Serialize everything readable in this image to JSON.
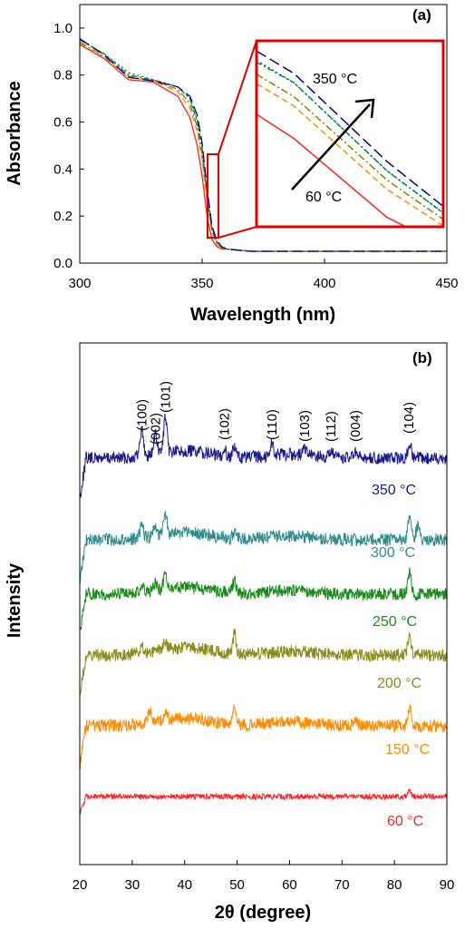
{
  "chart_data": [
    {
      "type": "line",
      "panel_label": "(a)",
      "xlabel": "Wavelength (nm)",
      "ylabel": "Absorbance",
      "xlim": [
        300,
        450
      ],
      "ylim": [
        0,
        1.1
      ],
      "xticks": [
        300,
        350,
        400,
        450
      ],
      "yticks": [
        0.0,
        0.2,
        0.4,
        0.6,
        0.8,
        1.0
      ],
      "grid": false,
      "annotations": {
        "high": "350 °C",
        "low": "60 °C"
      },
      "series": [
        {
          "color": "#ff2020",
          "dash": "solid",
          "x": [
            300,
            310,
            320,
            330,
            340,
            345,
            348,
            350,
            352,
            354,
            356,
            358,
            360,
            365,
            370,
            380,
            400,
            450
          ],
          "y": [
            0.93,
            0.87,
            0.78,
            0.77,
            0.71,
            0.62,
            0.5,
            0.37,
            0.2,
            0.1,
            0.07,
            0.06,
            0.06,
            0.055,
            0.05,
            0.05,
            0.05,
            0.05
          ]
        },
        {
          "color": "#ff8c00",
          "dash": "dash",
          "x": [
            300,
            310,
            320,
            330,
            340,
            345,
            348,
            350,
            352,
            354,
            356,
            358,
            360,
            365,
            370,
            380,
            400,
            450
          ],
          "y": [
            0.935,
            0.875,
            0.79,
            0.775,
            0.73,
            0.66,
            0.56,
            0.44,
            0.26,
            0.13,
            0.08,
            0.065,
            0.06,
            0.055,
            0.05,
            0.05,
            0.05,
            0.05
          ]
        },
        {
          "color": "#808000",
          "dash": "dashdot",
          "x": [
            300,
            310,
            320,
            330,
            340,
            345,
            348,
            350,
            352,
            354,
            356,
            358,
            360,
            365,
            370,
            380,
            400,
            450
          ],
          "y": [
            0.94,
            0.88,
            0.795,
            0.775,
            0.74,
            0.68,
            0.58,
            0.46,
            0.28,
            0.14,
            0.085,
            0.065,
            0.06,
            0.055,
            0.05,
            0.05,
            0.05,
            0.05
          ]
        },
        {
          "color": "#008000",
          "dash": "dot",
          "x": [
            300,
            310,
            320,
            330,
            340,
            345,
            348,
            350,
            352,
            354,
            356,
            358,
            360,
            365,
            370,
            380,
            400,
            450
          ],
          "y": [
            0.95,
            0.89,
            0.81,
            0.78,
            0.75,
            0.7,
            0.61,
            0.49,
            0.3,
            0.15,
            0.09,
            0.07,
            0.06,
            0.055,
            0.05,
            0.05,
            0.05,
            0.05
          ]
        },
        {
          "color": "#008080",
          "dash": "dashdot2",
          "x": [
            300,
            310,
            320,
            330,
            340,
            345,
            348,
            350,
            352,
            354,
            356,
            358,
            360,
            365,
            370,
            380,
            400,
            450
          ],
          "y": [
            0.95,
            0.89,
            0.8,
            0.78,
            0.75,
            0.7,
            0.6,
            0.49,
            0.3,
            0.15,
            0.09,
            0.07,
            0.06,
            0.055,
            0.05,
            0.05,
            0.05,
            0.05
          ]
        },
        {
          "color": "#00008b",
          "dash": "longdash",
          "x": [
            300,
            310,
            320,
            330,
            340,
            345,
            348,
            350,
            352,
            354,
            356,
            358,
            360,
            365,
            370,
            380,
            400,
            450
          ],
          "y": [
            0.955,
            0.885,
            0.79,
            0.775,
            0.75,
            0.71,
            0.63,
            0.51,
            0.32,
            0.16,
            0.095,
            0.07,
            0.06,
            0.055,
            0.05,
            0.05,
            0.05,
            0.05
          ]
        }
      ]
    },
    {
      "type": "line",
      "panel_label": "(b)",
      "xlabel": "2θ (degree)",
      "ylabel": "Intensity",
      "xlim": [
        20,
        90
      ],
      "xticks": [
        20,
        30,
        40,
        50,
        60,
        70,
        80,
        90
      ],
      "grid": false,
      "peak_labels": [
        {
          "label": "(100)",
          "x": 31.8
        },
        {
          "label": "(002)",
          "x": 34.4
        },
        {
          "label": "(101)",
          "x": 36.3
        },
        {
          "label": "(102)",
          "x": 47.6
        },
        {
          "label": "(110)",
          "x": 56.6
        },
        {
          "label": "(103)",
          "x": 62.9
        },
        {
          "label": "(112)",
          "x": 67.9
        },
        {
          "label": "(004)",
          "x": 72.5
        },
        {
          "label": "(104)",
          "x": 82.7
        }
      ],
      "series": [
        {
          "name": "350 °C",
          "color": "#1a1a8c",
          "peaks": [
            [
              31.8,
              30
            ],
            [
              34.4,
              22
            ],
            [
              36.3,
              38
            ],
            [
              47.6,
              8
            ],
            [
              49.5,
              10
            ],
            [
              56.6,
              14
            ],
            [
              62.9,
              8
            ],
            [
              67.9,
              8
            ],
            [
              72.5,
              6
            ],
            [
              82.9,
              16
            ]
          ]
        },
        {
          "name": "300 °C",
          "color": "#2e8b8b",
          "peaks": [
            [
              31.8,
              14
            ],
            [
              34.4,
              12
            ],
            [
              36.3,
              22
            ],
            [
              49.5,
              8
            ],
            [
              56.6,
              10
            ],
            [
              82.9,
              26
            ],
            [
              84.5,
              18
            ]
          ]
        },
        {
          "name": "250 °C",
          "color": "#1a8a1a",
          "peaks": [
            [
              31.8,
              8
            ],
            [
              34.4,
              8
            ],
            [
              36.3,
              14
            ],
            [
              49.5,
              14
            ],
            [
              56.6,
              6
            ],
            [
              82.9,
              24
            ]
          ]
        },
        {
          "name": "200 °C",
          "color": "#8b8b1a",
          "peaks": [
            [
              31.8,
              8
            ],
            [
              36.3,
              10
            ],
            [
              49.5,
              22
            ],
            [
              82.9,
              20
            ]
          ]
        },
        {
          "name": "150 °C",
          "color": "#ff8c00",
          "peaks": [
            [
              33.3,
              14
            ],
            [
              36.3,
              8
            ],
            [
              49.5,
              18
            ],
            [
              72.5,
              10
            ],
            [
              82.9,
              18
            ]
          ]
        },
        {
          "name": "60 °C",
          "color": "#ff2020",
          "peaks": [
            [
              82.9,
              6
            ]
          ]
        }
      ]
    }
  ]
}
